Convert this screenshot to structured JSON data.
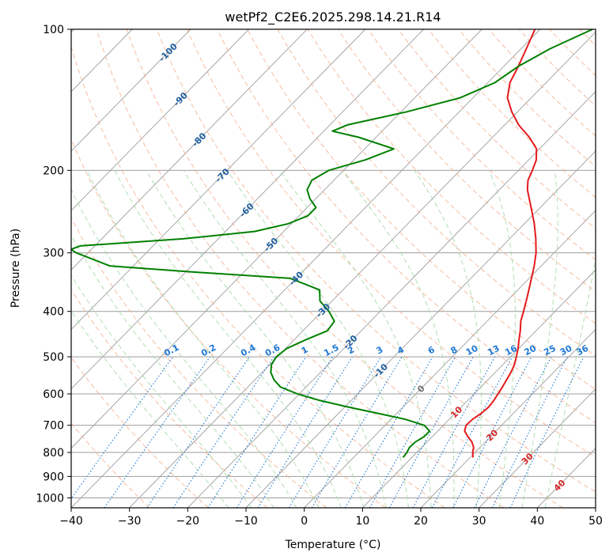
{
  "chart_data": {
    "type": "line",
    "title": "wetPf2_C2E6.2025.298.14.21.R14",
    "xlabel": "Temperature (°C)",
    "ylabel": "Pressure (hPa)",
    "xlim": [
      -40,
      50
    ],
    "ylim": [
      1050,
      100
    ],
    "y_scale": "log",
    "grid": true,
    "x_ticks": [
      "−40",
      "−30",
      "−20",
      "−10",
      "0",
      "10",
      "20",
      "30",
      "40",
      "50"
    ],
    "y_ticks": [
      {
        "p": 100,
        "label": "100"
      },
      {
        "p": 200,
        "label": "200"
      },
      {
        "p": 300,
        "label": "300"
      },
      {
        "p": 400,
        "label": "400"
      },
      {
        "p": 500,
        "label": "500"
      },
      {
        "p": 600,
        "label": "600"
      },
      {
        "p": 700,
        "label": "700"
      },
      {
        "p": 800,
        "label": "800"
      },
      {
        "p": 900,
        "label": "900"
      },
      {
        "p": 1000,
        "label": "1000"
      }
    ],
    "series": [
      {
        "color": "#e41a1c",
        "pressure": [
          820,
          800,
          780,
          760,
          740,
          720,
          700,
          680,
          660,
          640,
          620,
          600,
          580,
          560,
          540,
          520,
          500,
          480,
          460,
          440,
          420,
          400,
          380,
          360,
          340,
          320,
          300,
          280,
          260,
          240,
          220,
          210,
          200,
          190,
          180,
          170,
          160,
          150,
          140,
          130,
          120,
          110,
          100
        ],
        "temperature": [
          20.5,
          19.6,
          18.9,
          17.7,
          16.1,
          14.6,
          13.9,
          14.0,
          14.5,
          14.7,
          14.5,
          14.1,
          13.7,
          13.2,
          12.7,
          12.0,
          11.0,
          9.9,
          8.6,
          7.3,
          5.8,
          4.6,
          3.3,
          1.9,
          0.4,
          -1.2,
          -3.1,
          -5.5,
          -8.3,
          -11.6,
          -15.2,
          -16.7,
          -17.6,
          -18.7,
          -20.5,
          -23.7,
          -27.6,
          -31.0,
          -34.1,
          -36.2,
          -37.5,
          -39.1,
          -40.9
        ]
      },
      {
        "color": "#008000",
        "pressure": [
          820,
          800,
          780,
          760,
          740,
          720,
          700,
          680,
          660,
          640,
          620,
          600,
          580,
          560,
          540,
          520,
          500,
          480,
          460,
          440,
          420,
          400,
          380,
          360,
          340,
          330,
          320,
          300,
          295,
          290,
          280,
          270,
          260,
          250,
          240,
          230,
          220,
          210,
          200,
          190,
          180,
          170,
          165,
          160,
          150,
          140,
          130,
          120,
          110,
          100
        ],
        "temperature": [
          8.5,
          8.3,
          7.9,
          8.0,
          8.6,
          8.6,
          6.7,
          2.5,
          -3.3,
          -9.4,
          -15.3,
          -20.3,
          -24.4,
          -26.7,
          -28.5,
          -29.7,
          -30.2,
          -29.8,
          -28.0,
          -25.8,
          -26.2,
          -28.8,
          -32.1,
          -34.0,
          -41.0,
          -58.0,
          -74.0,
          -82.0,
          -83.5,
          -82.5,
          -66.0,
          -55.0,
          -50.5,
          -48.5,
          -48.5,
          -51.0,
          -53.0,
          -53.8,
          -52.5,
          -48.0,
          -45.0,
          -53.0,
          -58.5,
          -57.0,
          -49.0,
          -42.2,
          -38.8,
          -37.5,
          -35.0,
          -31.0
        ]
      }
    ],
    "dry_adiabat_labels": [
      "-100",
      "-90",
      "-80",
      "-70",
      "-60",
      "-50",
      "-40",
      "-30",
      "-20",
      "-10",
      "0",
      "10",
      "20",
      "30",
      "40"
    ],
    "mixing_ratio_labels": [
      "0.1",
      "0.2",
      "0.4",
      "0.6",
      "1",
      "1.5",
      "2",
      "3",
      "4",
      "6",
      "8",
      "10",
      "13",
      "16",
      "20",
      "25",
      "30",
      "36"
    ],
    "mixing_ratio_values": [
      0.1,
      0.2,
      0.4,
      0.6,
      1,
      1.5,
      2,
      3,
      4,
      6,
      8,
      10,
      13,
      16,
      20,
      25,
      30,
      36
    ],
    "colors": {
      "isotherm": "#9e9e9e",
      "dry_adiabat": "#f4a582",
      "moist_adiabat": "#a6d8a6",
      "mixing_ratio": "#1f78d4",
      "label_cold": "#1f5f9f",
      "label_zero": "#707070",
      "label_warm": "#d62728"
    }
  }
}
